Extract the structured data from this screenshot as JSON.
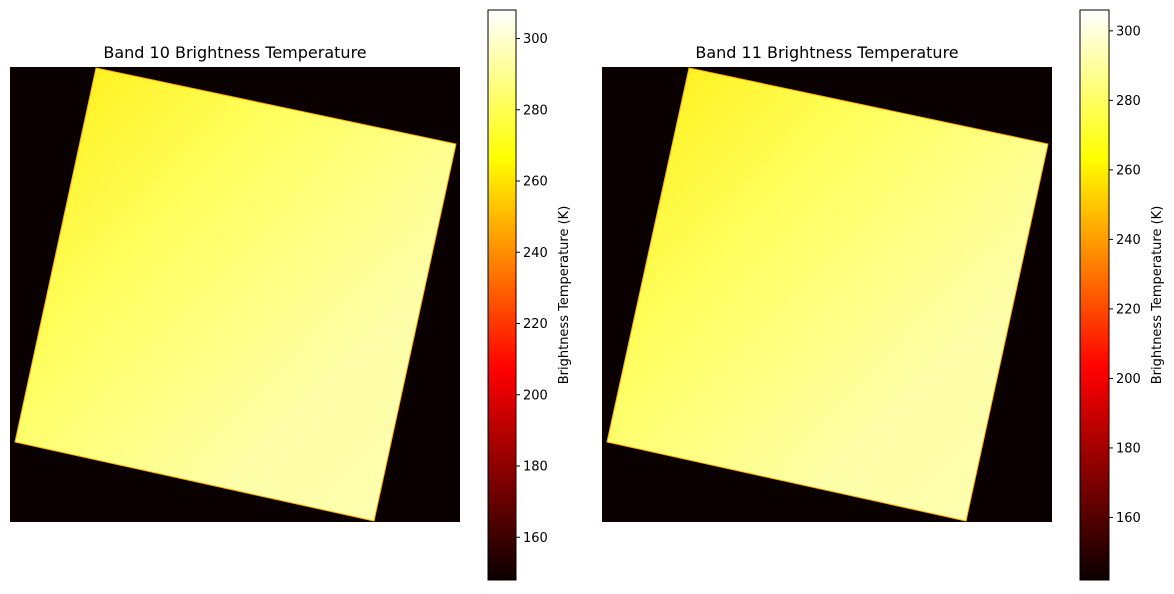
{
  "chart_data": [
    {
      "type": "heatmap",
      "title": "Band 10 Brightness Temperature",
      "colorbar_label": "Brightness Temperature (K)",
      "colormap": "hot",
      "clim": [
        148,
        308
      ],
      "cticks": [
        160,
        180,
        200,
        220,
        240,
        260,
        280,
        300
      ]
    },
    {
      "type": "heatmap",
      "title": "Band 11 Brightness Temperature",
      "colorbar_label": "Brightness Temperature (K)",
      "colormap": "hot",
      "clim": [
        142,
        306
      ],
      "cticks": [
        160,
        180,
        200,
        220,
        240,
        260,
        280,
        300
      ]
    }
  ]
}
